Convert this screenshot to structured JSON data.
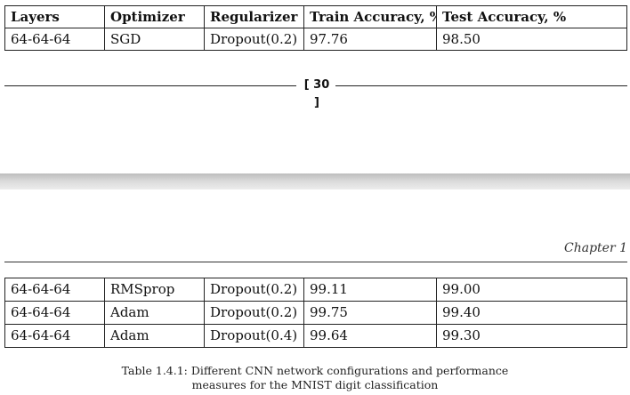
{
  "top_table": {
    "headers": [
      "Layers",
      "Optimizer",
      "Regularizer",
      "Train Accuracy, %",
      "Test Accuracy, %"
    ],
    "rows": [
      [
        "64-64-64",
        "SGD",
        "Dropout(0.2)",
        "97.76",
        "98.50"
      ]
    ]
  },
  "page_number": "[ 30 ]",
  "running_header": "Chapter 1",
  "bottom_table": {
    "rows": [
      [
        "64-64-64",
        "RMSprop",
        "Dropout(0.2)",
        "99.11",
        "99.00"
      ],
      [
        "64-64-64",
        "Adam",
        "Dropout(0.2)",
        "99.75",
        "99.40"
      ],
      [
        "64-64-64",
        "Adam",
        "Dropout(0.4)",
        "99.64",
        "99.30"
      ]
    ]
  },
  "caption": {
    "line1": "Table 1.4.1: Different CNN network configurations and performance",
    "line2": "measures for the MNIST digit classification"
  }
}
